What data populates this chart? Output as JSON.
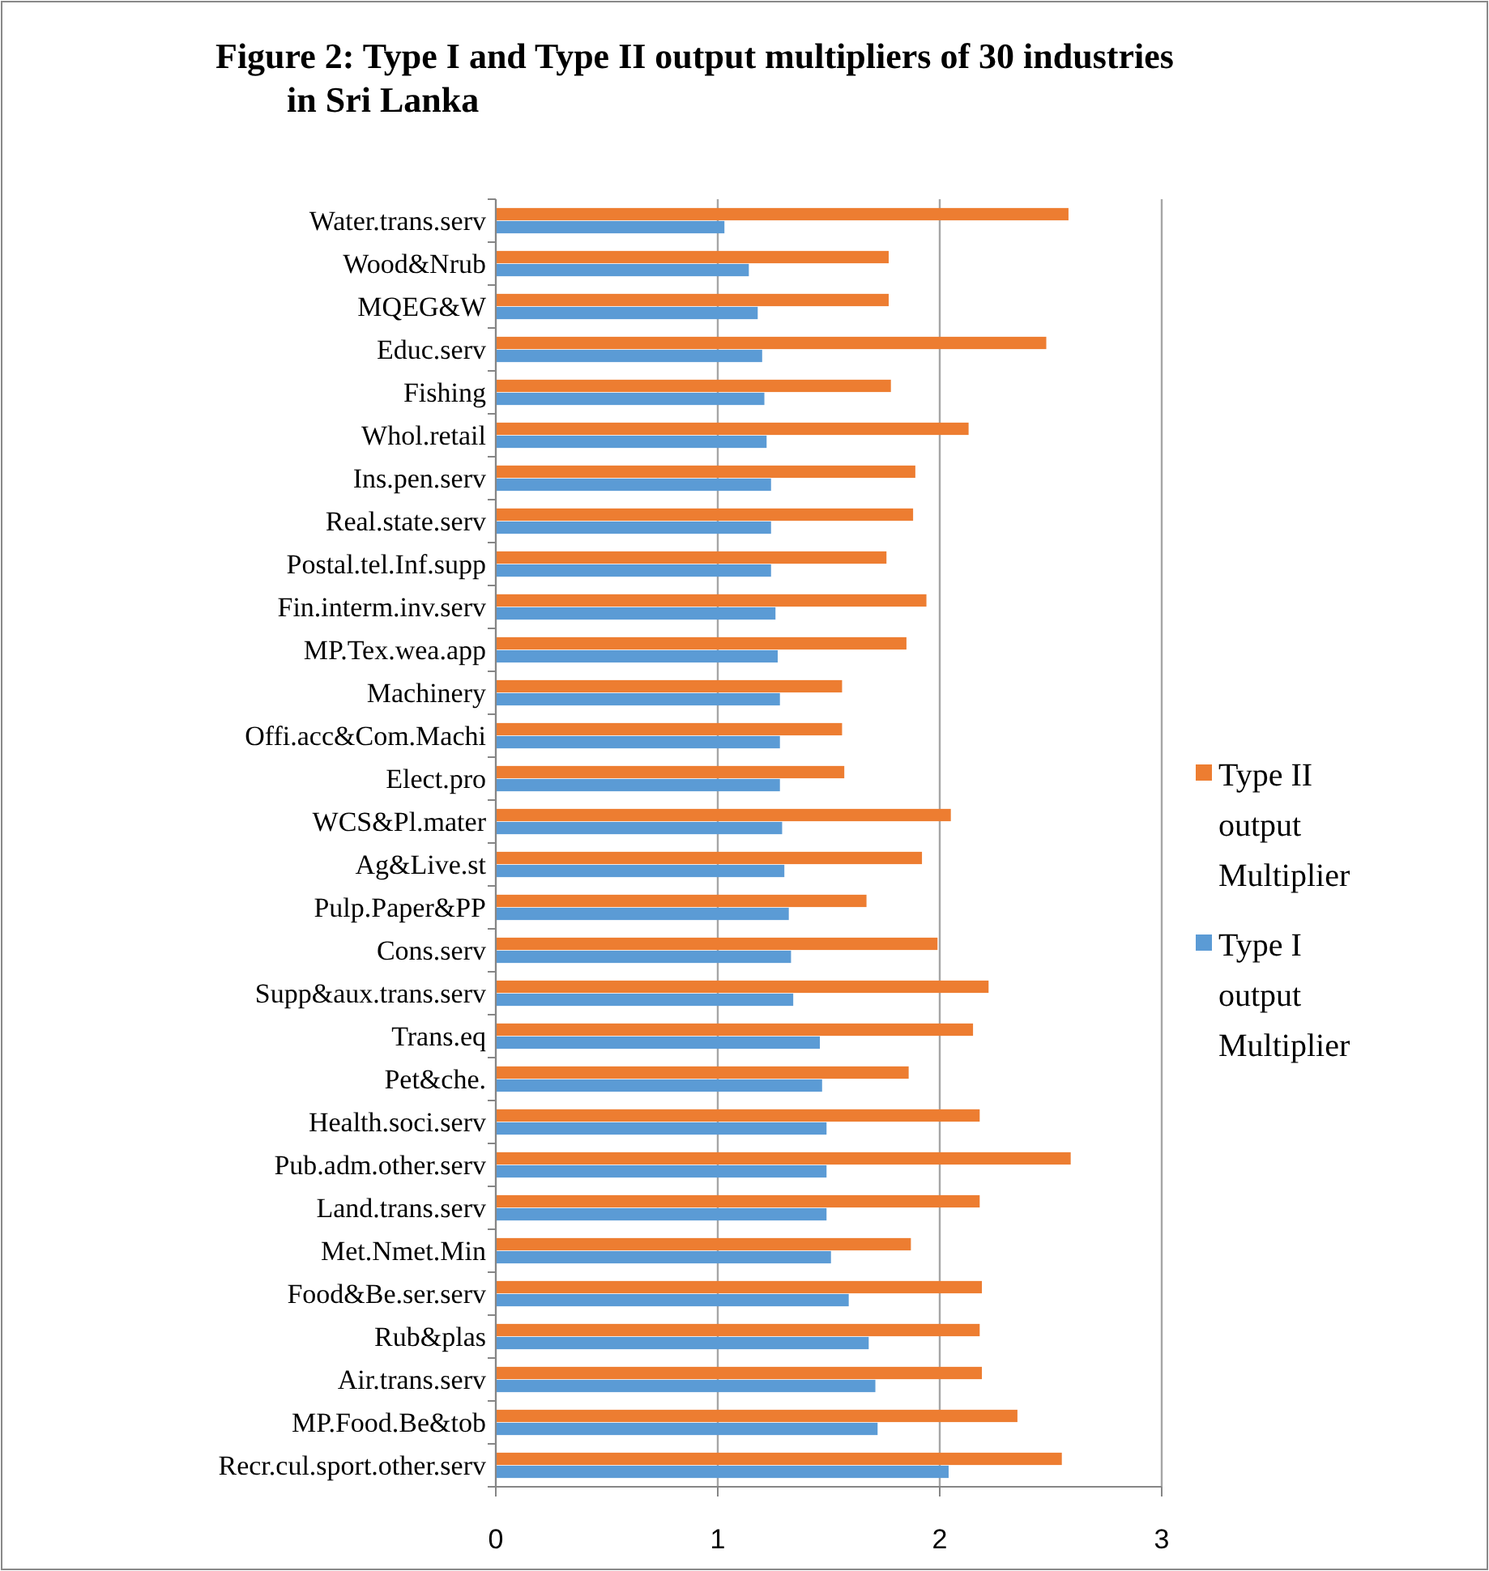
{
  "chart_data": {
    "type": "bar",
    "orientation": "horizontal",
    "title": "Figure 2: Type I and Type II output multipliers of 30 industries in Sri Lanka",
    "categories": [
      "Water.trans.serv",
      "Wood&Nrub",
      "MQEG&W",
      "Educ.serv",
      "Fishing",
      "Whol.retail",
      "Ins.pen.serv",
      "Real.state.serv",
      "Postal.tel.Inf.supp",
      "Fin.interm.inv.serv",
      "MP.Tex.wea.app",
      "Machinery",
      "Offi.acc&Com.Machi",
      "Elect.pro",
      "WCS&Pl.mater",
      "Ag&Live.st",
      "Pulp.Paper&PP",
      "Cons.serv",
      "Supp&aux.trans.serv",
      "Trans.eq",
      "Pet&che.",
      "Health.soci.serv",
      "Pub.adm.other.serv",
      "Land.trans.serv",
      "Met.Nmet.Min",
      "Food&Be.ser.serv",
      "Rub&plas",
      "Air.trans.serv",
      "MP.Food.Be&tob",
      "Recr.cul.sport.other.serv"
    ],
    "series": [
      {
        "name": "Type II output Multiplier",
        "color": "#ed7d31",
        "values": [
          2.58,
          1.77,
          1.77,
          2.48,
          1.78,
          2.13,
          1.89,
          1.88,
          1.76,
          1.94,
          1.85,
          1.56,
          1.56,
          1.57,
          2.05,
          1.92,
          1.67,
          1.99,
          2.22,
          2.15,
          1.86,
          2.18,
          2.59,
          2.18,
          1.87,
          2.19,
          2.18,
          2.19,
          2.35,
          2.55
        ]
      },
      {
        "name": "Type I output Multiplier",
        "color": "#5b9bd5",
        "values": [
          1.03,
          1.14,
          1.18,
          1.2,
          1.21,
          1.22,
          1.24,
          1.24,
          1.24,
          1.26,
          1.27,
          1.28,
          1.28,
          1.28,
          1.29,
          1.3,
          1.32,
          1.33,
          1.34,
          1.46,
          1.47,
          1.49,
          1.49,
          1.49,
          1.51,
          1.59,
          1.68,
          1.71,
          1.72,
          2.04
        ]
      }
    ],
    "xlim": [
      0,
      3
    ],
    "xticks": [
      0,
      1,
      2,
      3
    ],
    "grid": "x",
    "legend": "right"
  }
}
